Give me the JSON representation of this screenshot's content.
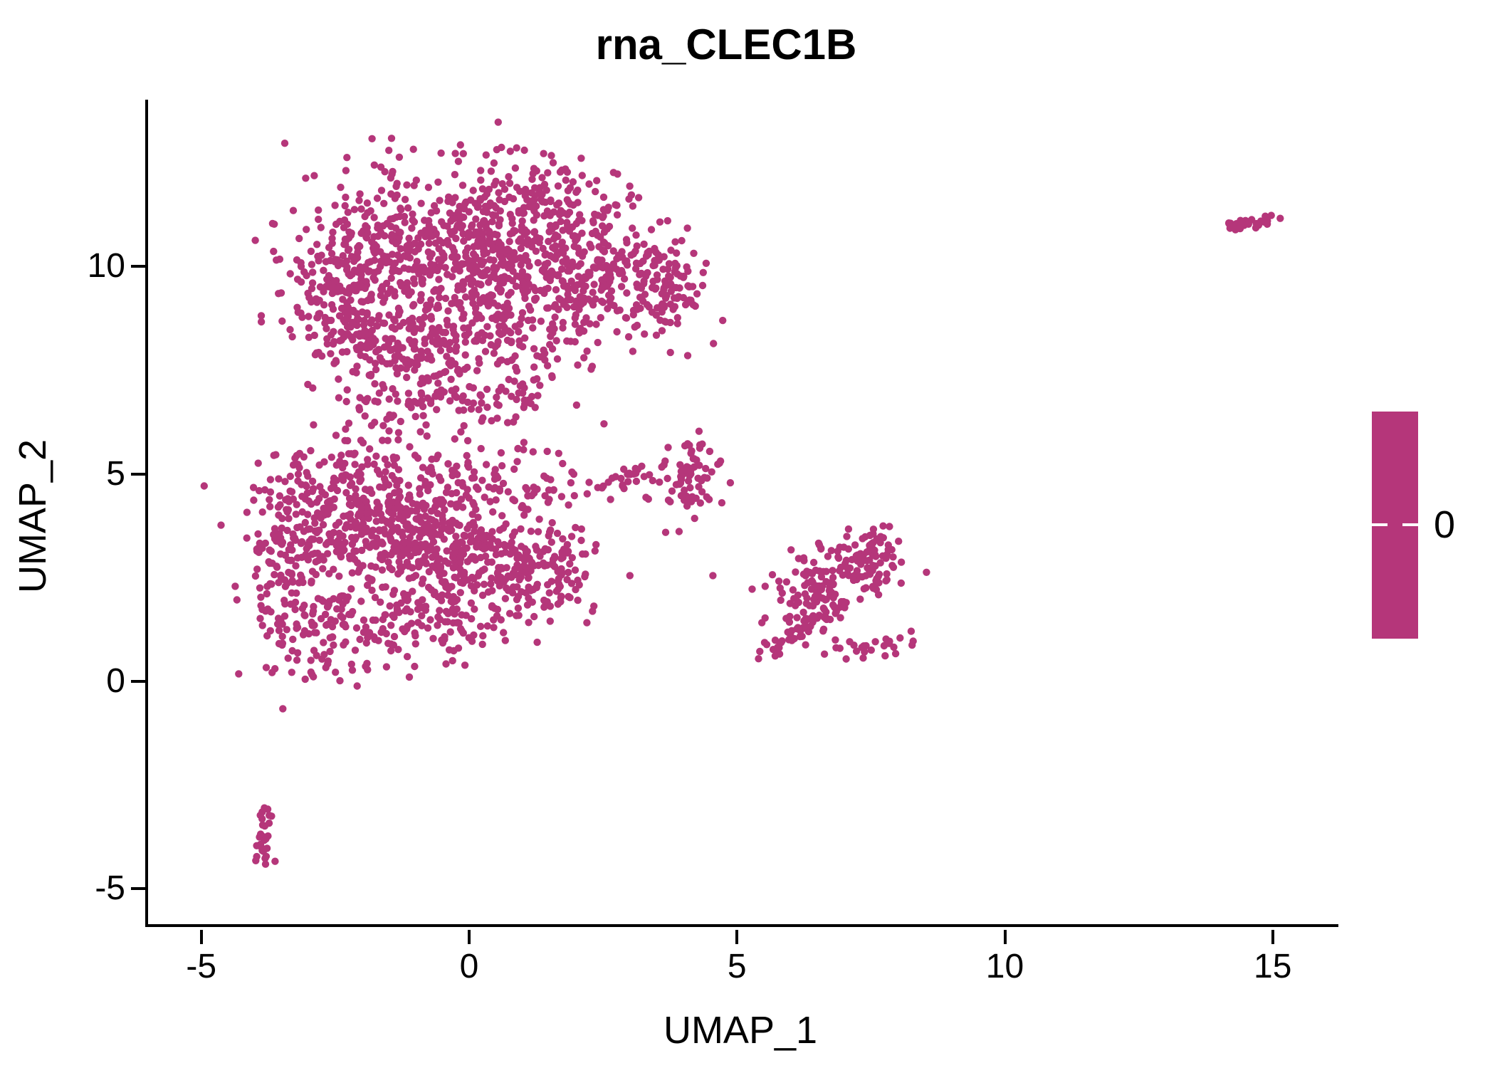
{
  "title": "rna_CLEC1B",
  "axes": {
    "x": {
      "label": "UMAP_1",
      "ticks": [
        -5,
        0,
        5,
        10,
        15
      ]
    },
    "y": {
      "label": "UMAP_2",
      "ticks": [
        10,
        5,
        0,
        -5
      ]
    }
  },
  "legend": {
    "tick_label": "0",
    "color": "#B5367A",
    "position": "right"
  },
  "chart_data": {
    "type": "scatter",
    "title": "rna_CLEC1B",
    "xlabel": "UMAP_1",
    "ylabel": "UMAP_2",
    "x_ticks": [
      -5,
      0,
      5,
      10,
      15
    ],
    "y_ticks": [
      10,
      5,
      0,
      -5
    ],
    "xlim": [
      -6.0,
      16.2
    ],
    "ylim": [
      -6.1,
      14.0
    ],
    "grid": false,
    "legend_colorbar": {
      "labels": [
        "0"
      ],
      "single_value": 0,
      "color": "#B5367A"
    },
    "series_color": "#B5367A",
    "point_radius_px": 5.2,
    "n_points_approx": 3315,
    "clusters": [
      {
        "name": "upper-lobe-left",
        "kind": "gauss",
        "cx": -2.55,
        "cy": 9.7,
        "sx": 0.5,
        "sy": 0.85,
        "n": 140
      },
      {
        "name": "upper-lobe-left-top",
        "kind": "gauss",
        "cx": -1.45,
        "cy": 10.4,
        "sx": 0.7,
        "sy": 0.95,
        "n": 200
      },
      {
        "name": "upper-lobe-center",
        "kind": "gauss",
        "cx": -0.1,
        "cy": 10.3,
        "sx": 0.85,
        "sy": 1.0,
        "n": 260
      },
      {
        "name": "upper-lobe-top-tip",
        "kind": "gauss",
        "cx": 1.2,
        "cy": 11.5,
        "sx": 0.75,
        "sy": 0.65,
        "n": 160,
        "ymax": 12.9
      },
      {
        "name": "upper-lobe-mid",
        "kind": "gauss",
        "cx": 1.0,
        "cy": 9.6,
        "sx": 0.9,
        "sy": 0.8,
        "n": 200
      },
      {
        "name": "upper-lobe-right",
        "kind": "gauss",
        "cx": 2.5,
        "cy": 9.9,
        "sx": 0.8,
        "sy": 0.75,
        "n": 190
      },
      {
        "name": "upper-lobe-right-arm",
        "kind": "gauss",
        "cx": 3.6,
        "cy": 9.4,
        "sx": 0.38,
        "sy": 0.55,
        "n": 90
      },
      {
        "name": "upper-lobe-bottom-band",
        "kind": "gauss",
        "cx": -0.2,
        "cy": 8.1,
        "sx": 1.3,
        "sy": 0.55,
        "n": 170
      },
      {
        "name": "upper-lobe-bottom-left",
        "kind": "gauss",
        "cx": -1.9,
        "cy": 8.4,
        "sx": 0.6,
        "sy": 0.5,
        "n": 90
      },
      {
        "name": "bridge-left",
        "kind": "gauss",
        "cx": -1.1,
        "cy": 6.9,
        "sx": 0.75,
        "sy": 0.45,
        "n": 70
      },
      {
        "name": "bridge-right",
        "kind": "gauss",
        "cx": 0.6,
        "cy": 6.8,
        "sx": 0.7,
        "sy": 0.45,
        "n": 50
      },
      {
        "name": "lower-lobe-left-column",
        "kind": "gauss",
        "cx": -3.35,
        "cy": 3.3,
        "sx": 0.45,
        "sy": 1.05,
        "n": 140
      },
      {
        "name": "lower-lobe-upper-left",
        "kind": "gauss",
        "cx": -2.3,
        "cy": 4.2,
        "sx": 0.75,
        "sy": 0.85,
        "n": 220
      },
      {
        "name": "lower-lobe-center",
        "kind": "gauss",
        "cx": -1.15,
        "cy": 3.6,
        "sx": 0.85,
        "sy": 0.95,
        "n": 280
      },
      {
        "name": "lower-lobe-right",
        "kind": "gauss",
        "cx": 0.2,
        "cy": 3.0,
        "sx": 0.85,
        "sy": 0.75,
        "n": 230
      },
      {
        "name": "lower-lobe-right-tip",
        "kind": "gauss",
        "cx": 1.4,
        "cy": 2.6,
        "sx": 0.55,
        "sy": 0.55,
        "n": 110
      },
      {
        "name": "lower-lobe-bottom-tip",
        "kind": "gauss",
        "cx": -2.6,
        "cy": 1.1,
        "sx": 0.65,
        "sy": 0.6,
        "n": 120
      },
      {
        "name": "lower-lobe-bottom-mid",
        "kind": "gauss",
        "cx": -1.0,
        "cy": 1.5,
        "sx": 0.8,
        "sy": 0.5,
        "n": 90
      },
      {
        "name": "lower-lobe-top-edge",
        "kind": "gauss",
        "cx": 0.3,
        "cy": 4.85,
        "sx": 0.8,
        "sy": 0.4,
        "n": 60
      },
      {
        "name": "trail-to-mid-cluster",
        "kind": "gauss",
        "cx": 2.0,
        "cy": 4.75,
        "sx": 0.45,
        "sy": 0.22,
        "n": 22
      },
      {
        "name": "mid-small-cluster",
        "kind": "gauss",
        "cx": 4.05,
        "cy": 5.0,
        "sx": 0.33,
        "sy": 0.42,
        "n": 80
      },
      {
        "name": "mid-cluster-left-trail",
        "kind": "gauss",
        "cx": 3.05,
        "cy": 4.95,
        "sx": 0.28,
        "sy": 0.18,
        "n": 14
      },
      {
        "name": "right-cluster-knot",
        "kind": "gauss",
        "cx": 6.95,
        "cy": 2.55,
        "sx": 0.42,
        "sy": 0.5,
        "n": 85
      },
      {
        "name": "right-cluster-upper",
        "kind": "gauss",
        "cx": 7.55,
        "cy": 2.8,
        "sx": 0.28,
        "sy": 0.42,
        "n": 45
      },
      {
        "name": "right-cluster-diagonal",
        "kind": "line",
        "x1": 5.45,
        "y1": 0.55,
        "x2": 6.75,
        "y2": 1.75,
        "jx": 0.12,
        "jy": 0.12,
        "n": 48
      },
      {
        "name": "right-cluster-arm",
        "kind": "gauss",
        "cx": 7.55,
        "cy": 0.85,
        "sx": 0.38,
        "sy": 0.13,
        "n": 26
      },
      {
        "name": "right-cluster-top-spur",
        "kind": "gauss",
        "cx": 7.65,
        "cy": 3.35,
        "sx": 0.14,
        "sy": 0.3,
        "n": 14
      },
      {
        "name": "right-cluster-sparse",
        "kind": "gauss",
        "cx": 6.3,
        "cy": 2.0,
        "sx": 0.55,
        "sy": 0.5,
        "n": 50
      },
      {
        "name": "far-right-cluster",
        "kind": "line",
        "x1": 14.1,
        "y1": 10.95,
        "x2": 15.0,
        "y2": 11.15,
        "jx": 0.08,
        "jy": 0.09,
        "n": 30
      },
      {
        "name": "bottom-left-cluster",
        "kind": "line",
        "x1": -3.78,
        "y1": -3.1,
        "x2": -3.92,
        "y2": -4.5,
        "jx": 0.09,
        "jy": 0.12,
        "n": 28
      }
    ],
    "extra_points": [
      {
        "x": 2.6,
        "y": 4.8
      },
      {
        "x": 4.55,
        "y": 2.55
      },
      {
        "x": 3.0,
        "y": 2.55
      }
    ]
  }
}
